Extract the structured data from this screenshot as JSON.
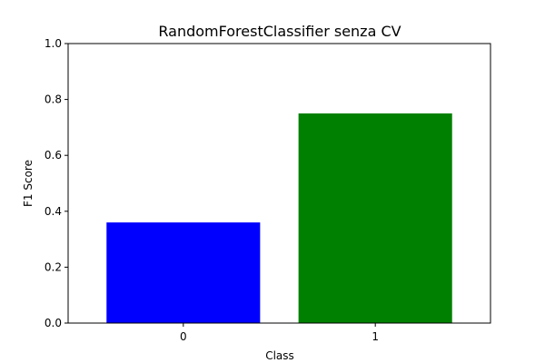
{
  "chart_data": {
    "type": "bar",
    "title": "RandomForestClassifier senza CV",
    "xlabel": "Class",
    "ylabel": "F1 Score",
    "categories": [
      "0",
      "1"
    ],
    "values": [
      0.36,
      0.75
    ],
    "bar_colors": [
      "#0000ff",
      "#008000"
    ],
    "ylim": [
      0,
      1.0
    ],
    "yticks": [
      "0.0",
      "0.2",
      "0.4",
      "0.6",
      "0.8",
      "1.0"
    ],
    "grid": false,
    "legend": "none"
  }
}
